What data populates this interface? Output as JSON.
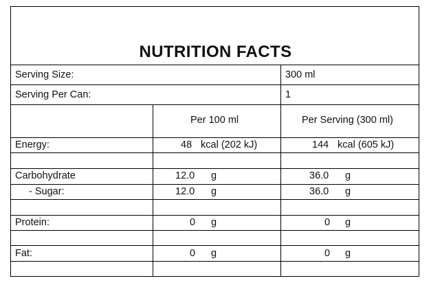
{
  "title": "NUTRITION FACTS",
  "serving_size": {
    "label": "Serving Size:",
    "value": "300 ml"
  },
  "serving_per_can": {
    "label": "Serving Per Can:",
    "value": "1"
  },
  "columns": {
    "per_100": "Per 100 ml",
    "per_serving": "Per Serving (300 ml)"
  },
  "rows": {
    "energy": {
      "label": "Energy:",
      "per_100": "48",
      "per_100_unit": "kcal (202 kJ)",
      "per_serving": "144",
      "per_serving_unit": "kcal (605 kJ)"
    },
    "carbohydrate": {
      "label": "Carbohydrate",
      "per_100": "12.0",
      "per_100_unit": "g",
      "per_serving": "36.0",
      "per_serving_unit": "g"
    },
    "sugar": {
      "label": "- Sugar:",
      "per_100": "12.0",
      "per_100_unit": "g",
      "per_serving": "36.0",
      "per_serving_unit": "g"
    },
    "protein": {
      "label": "Protein:",
      "per_100": "0",
      "per_100_unit": "g",
      "per_serving": "0",
      "per_serving_unit": "g"
    },
    "fat": {
      "label": "Fat:",
      "per_100": "0",
      "per_100_unit": "g",
      "per_serving": "0",
      "per_serving_unit": "g"
    }
  }
}
